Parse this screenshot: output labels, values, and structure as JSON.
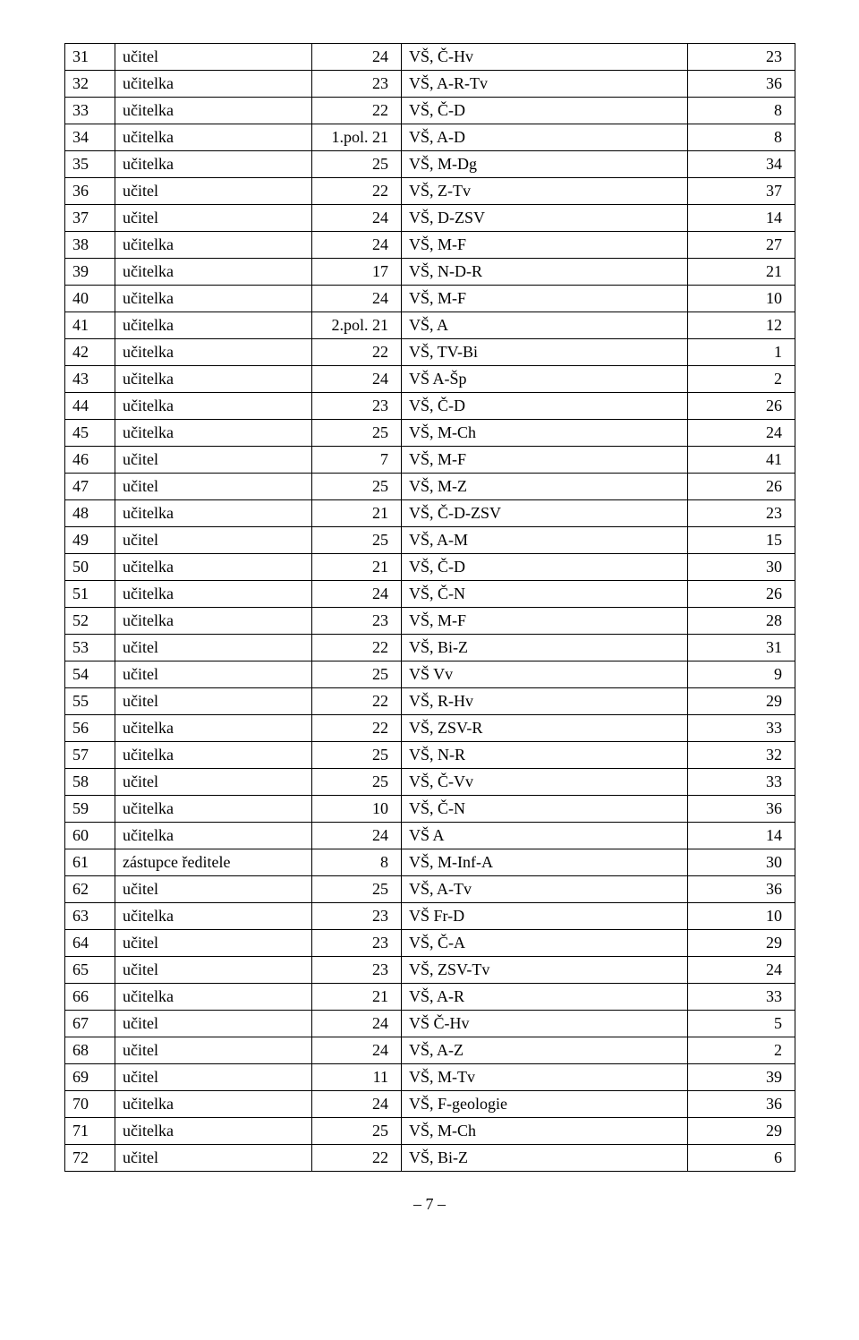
{
  "table": {
    "columns": [
      "seq",
      "role",
      "num1",
      "subject",
      "num2"
    ],
    "col_classes": [
      "col1",
      "col2",
      "col3",
      "col4",
      "col5"
    ],
    "rows": [
      [
        "31",
        "učitel",
        "24",
        "VŠ, Č-Hv",
        "23"
      ],
      [
        "32",
        "učitelka",
        "23",
        "VŠ, A-R-Tv",
        "36"
      ],
      [
        "33",
        "učitelka",
        "22",
        "VŠ, Č-D",
        "8"
      ],
      [
        "34",
        "učitelka",
        "1.pol. 21",
        "VŠ, A-D",
        "8"
      ],
      [
        "35",
        "učitelka",
        "25",
        "VŠ, M-Dg",
        "34"
      ],
      [
        "36",
        "učitel",
        "22",
        "VŠ, Z-Tv",
        "37"
      ],
      [
        "37",
        "učitel",
        "24",
        "VŠ, D-ZSV",
        "14"
      ],
      [
        "38",
        "učitelka",
        "24",
        "VŠ, M-F",
        "27"
      ],
      [
        "39",
        "učitelka",
        "17",
        "VŠ, N-D-R",
        "21"
      ],
      [
        "40",
        "učitelka",
        "24",
        "VŠ, M-F",
        "10"
      ],
      [
        "41",
        "učitelka",
        "2.pol. 21",
        "VŠ, A",
        "12"
      ],
      [
        "42",
        "učitelka",
        "22",
        "VŠ, TV-Bi",
        "1"
      ],
      [
        "43",
        "učitelka",
        "24",
        "VŠ A-Šp",
        "2"
      ],
      [
        "44",
        "učitelka",
        "23",
        "VŠ, Č-D",
        "26"
      ],
      [
        "45",
        "učitelka",
        "25",
        "VŠ, M-Ch",
        "24"
      ],
      [
        "46",
        "učitel",
        "7",
        "VŠ, M-F",
        "41"
      ],
      [
        "47",
        "učitel",
        "25",
        "VŠ, M-Z",
        "26"
      ],
      [
        "48",
        "učitelka",
        "21",
        "VŠ, Č-D-ZSV",
        "23"
      ],
      [
        "49",
        "učitel",
        "25",
        "VŠ, A-M",
        "15"
      ],
      [
        "50",
        "učitelka",
        "21",
        "VŠ, Č-D",
        "30"
      ],
      [
        "51",
        "učitelka",
        "24",
        "VŠ, Č-N",
        "26"
      ],
      [
        "52",
        "učitelka",
        "23",
        "VŠ, M-F",
        "28"
      ],
      [
        "53",
        "učitel",
        "22",
        "VŠ, Bi-Z",
        "31"
      ],
      [
        "54",
        "učitel",
        "25",
        "VŠ Vv",
        "9"
      ],
      [
        "55",
        "učitel",
        "22",
        "VŠ, R-Hv",
        "29"
      ],
      [
        "56",
        "učitelka",
        "22",
        "VŠ, ZSV-R",
        "33"
      ],
      [
        "57",
        "učitelka",
        "25",
        "VŠ, N-R",
        "32"
      ],
      [
        "58",
        "učitel",
        "25",
        "VŠ, Č-Vv",
        "33"
      ],
      [
        "59",
        "učitelka",
        "10",
        "VŠ, Č-N",
        "36"
      ],
      [
        "60",
        "učitelka",
        "24",
        "VŠ A",
        "14"
      ],
      [
        "61",
        "zástupce ředitele",
        "8",
        "VŠ, M-Inf-A",
        "30"
      ],
      [
        "62",
        "učitel",
        "25",
        "VŠ, A-Tv",
        "36"
      ],
      [
        "63",
        "učitelka",
        "23",
        "VŠ Fr-D",
        "10"
      ],
      [
        "64",
        "učitel",
        "23",
        "VŠ, Č-A",
        "29"
      ],
      [
        "65",
        "učitel",
        "23",
        "VŠ, ZSV-Tv",
        "24"
      ],
      [
        "66",
        "učitelka",
        "21",
        "VŠ, A-R",
        "33"
      ],
      [
        "67",
        "učitel",
        "24",
        "VŠ Č-Hv",
        "5"
      ],
      [
        "68",
        "učitel",
        "24",
        "VŠ, A-Z",
        "2"
      ],
      [
        "69",
        "učitel",
        "11",
        "VŠ, M-Tv",
        "39"
      ],
      [
        "70",
        "učitelka",
        "24",
        "VŠ, F-geologie",
        "36"
      ],
      [
        "71",
        "učitelka",
        "25",
        "VŠ, M-Ch",
        "29"
      ],
      [
        "72",
        "učitel",
        "22",
        "VŠ, Bi-Z",
        "6"
      ]
    ]
  },
  "page_number": "– 7 –"
}
